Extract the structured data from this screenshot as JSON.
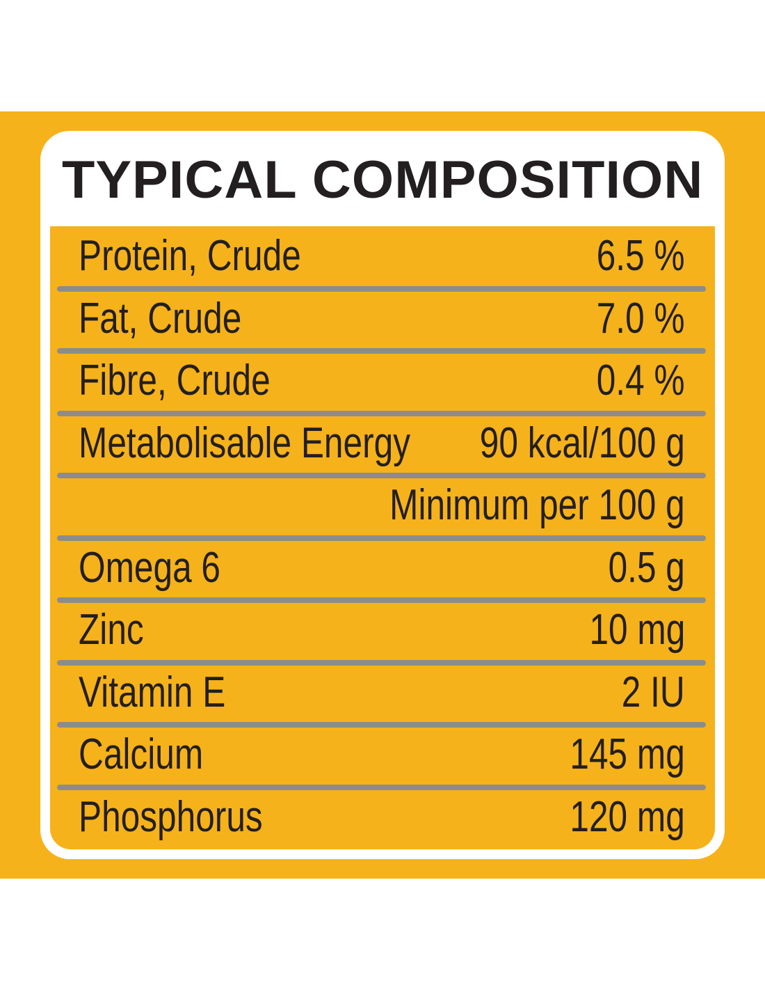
{
  "header": {
    "title": "TYPICAL COMPOSITION"
  },
  "table": {
    "rows": [
      [
        "Protein, Crude",
        "6.5 %"
      ],
      [
        "Fat, Crude",
        "7.0 %"
      ],
      [
        "Fibre, Crude",
        "0.4 %"
      ],
      [
        "Metabolisable Energy",
        "90 kcal/100 g"
      ],
      [
        "Minimum per 100 g"
      ],
      [
        "Omega 6",
        "0.5 g"
      ],
      [
        "Zinc",
        "10 mg"
      ],
      [
        "Vitamin E",
        "2 IU"
      ],
      [
        "Calcium",
        "145 mg"
      ],
      [
        "Phosphorus",
        "120 mg"
      ]
    ]
  }
}
